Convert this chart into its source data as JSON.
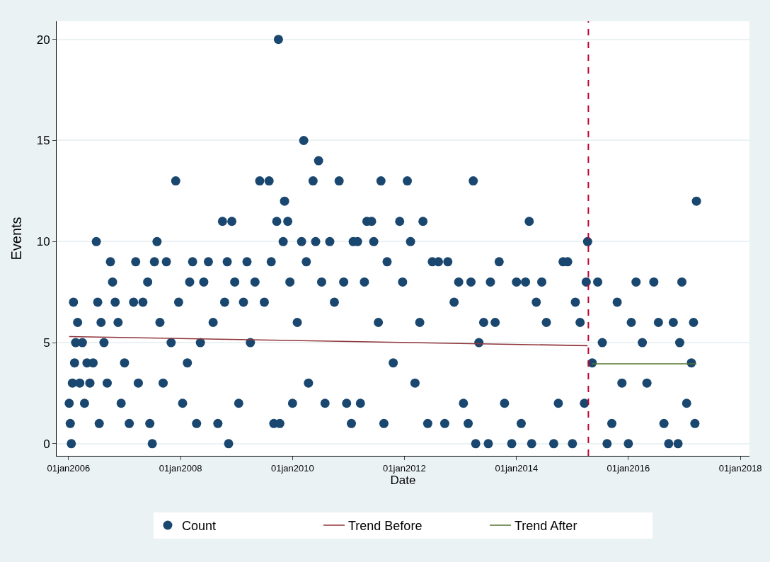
{
  "chart_data": {
    "type": "scatter",
    "xlabel": "Date",
    "ylabel": "Events",
    "xlim": [
      "2005-10-15",
      "2018-03-01"
    ],
    "ylim": [
      -0.6,
      20.9
    ],
    "xticks": [
      {
        "value": "2006-01-01",
        "label": "01jan2006"
      },
      {
        "value": "2008-01-01",
        "label": "01jan2008"
      },
      {
        "value": "2010-01-01",
        "label": "01jan2010"
      },
      {
        "value": "2012-01-01",
        "label": "01jan2012"
      },
      {
        "value": "2014-01-01",
        "label": "01jan2014"
      },
      {
        "value": "2016-01-01",
        "label": "01jan2016"
      },
      {
        "value": "2018-01-01",
        "label": "01jan2018"
      }
    ],
    "yticks": [
      0,
      5,
      10,
      15,
      20
    ],
    "grid": "y",
    "legend": "bottom",
    "ref_lines": [
      {
        "axis": "x",
        "value": "2015-04-15",
        "color": "#c10534",
        "line_style": "dashed"
      }
    ],
    "series": [
      {
        "name": "Count",
        "marker": "circle",
        "color": "#1a476f",
        "x": [
          "2006-01-05",
          "2006-01-12",
          "2006-01-19",
          "2006-01-26",
          "2006-02-02",
          "2006-02-09",
          "2006-02-16",
          "2006-03-01",
          "2006-03-15",
          "2006-04-01",
          "2006-04-15",
          "2006-05-01",
          "2006-05-20",
          "2006-06-10",
          "2006-07-01",
          "2006-07-10",
          "2006-07-20",
          "2006-08-01",
          "2006-08-20",
          "2006-09-10",
          "2006-10-01",
          "2006-10-15",
          "2006-11-01",
          "2006-11-20",
          "2006-12-10",
          "2007-01-01",
          "2007-02-01",
          "2007-03-01",
          "2007-03-15",
          "2007-04-01",
          "2007-05-01",
          "2007-06-01",
          "2007-06-15",
          "2007-07-01",
          "2007-07-15",
          "2007-08-01",
          "2007-08-20",
          "2007-09-10",
          "2007-10-01",
          "2007-11-01",
          "2007-12-01",
          "2007-12-20",
          "2008-01-15",
          "2008-02-15",
          "2008-03-01",
          "2008-03-20",
          "2008-04-15",
          "2008-05-10",
          "2008-06-01",
          "2008-07-01",
          "2008-08-01",
          "2008-09-01",
          "2008-10-01",
          "2008-10-15",
          "2008-11-01",
          "2008-11-10",
          "2008-12-01",
          "2008-12-20",
          "2009-01-15",
          "2009-02-15",
          "2009-03-10",
          "2009-04-01",
          "2009-05-01",
          "2009-06-01",
          "2009-07-01",
          "2009-08-01",
          "2009-08-15",
          "2009-09-01",
          "2009-09-20",
          "2009-10-01",
          "2009-10-10",
          "2009-11-01",
          "2009-11-10",
          "2009-12-01",
          "2009-12-15",
          "2010-01-01",
          "2010-02-01",
          "2010-03-01",
          "2010-03-15",
          "2010-04-01",
          "2010-04-15",
          "2010-05-15",
          "2010-06-01",
          "2010-06-20",
          "2010-07-10",
          "2010-08-01",
          "2010-09-01",
          "2010-10-01",
          "2010-11-01",
          "2010-12-01",
          "2010-12-20",
          "2011-01-20",
          "2011-02-01",
          "2011-03-01",
          "2011-03-20",
          "2011-04-15",
          "2011-05-01",
          "2011-06-01",
          "2011-06-15",
          "2011-07-15",
          "2011-08-01",
          "2011-08-20",
          "2011-09-10",
          "2011-10-20",
          "2011-12-01",
          "2011-12-20",
          "2012-01-20",
          "2012-02-10",
          "2012-03-10",
          "2012-04-10",
          "2012-05-01",
          "2012-06-01",
          "2012-07-01",
          "2012-08-10",
          "2012-09-20",
          "2012-10-10",
          "2012-11-20",
          "2012-12-20",
          "2013-01-20",
          "2013-02-20",
          "2013-03-10",
          "2013-03-25",
          "2013-04-10",
          "2013-05-01",
          "2013-06-01",
          "2013-07-01",
          "2013-07-15",
          "2013-08-15",
          "2013-09-10",
          "2013-10-15",
          "2013-12-01",
          "2014-01-01",
          "2014-02-01",
          "2014-03-01",
          "2014-03-25",
          "2014-04-10",
          "2014-05-10",
          "2014-06-15",
          "2014-07-15",
          "2014-09-01",
          "2014-10-01",
          "2014-11-01",
          "2014-12-01",
          "2015-01-01",
          "2015-01-20",
          "2015-02-20",
          "2015-03-20",
          "2015-04-01",
          "2015-04-10",
          "2015-05-10",
          "2015-06-15",
          "2015-07-15",
          "2015-08-15",
          "2015-09-15",
          "2015-10-20",
          "2015-11-20",
          "2016-01-01",
          "2016-01-20",
          "2016-02-20",
          "2016-04-01",
          "2016-05-01",
          "2016-06-15",
          "2016-07-15",
          "2016-08-20",
          "2016-09-20",
          "2016-10-20",
          "2016-11-20",
          "2016-12-01",
          "2016-12-15",
          "2017-01-15",
          "2017-02-15",
          "2017-03-01",
          "2017-03-10",
          "2017-03-20"
        ],
        "values": [
          2,
          1,
          0,
          3,
          7,
          4,
          5,
          6,
          3,
          5,
          2,
          4,
          3,
          4,
          10,
          7,
          1,
          6,
          5,
          3,
          9,
          8,
          7,
          6,
          2,
          4,
          1,
          7,
          9,
          3,
          7,
          8,
          1,
          0,
          9,
          10,
          6,
          3,
          9,
          5,
          13,
          7,
          2,
          4,
          8,
          9,
          1,
          5,
          8,
          9,
          6,
          1,
          11,
          7,
          9,
          0,
          11,
          8,
          2,
          7,
          9,
          5,
          8,
          13,
          7,
          13,
          9,
          1,
          11,
          20,
          1,
          10,
          12,
          11,
          8,
          2,
          6,
          10,
          15,
          9,
          3,
          13,
          10,
          14,
          8,
          2,
          10,
          7,
          13,
          8,
          2,
          1,
          10,
          10,
          2,
          8,
          11,
          11,
          10,
          6,
          13,
          1,
          9,
          4,
          11,
          8,
          13,
          10,
          3,
          6,
          11,
          1,
          9,
          9,
          1,
          9,
          7,
          8,
          2,
          1,
          8,
          13,
          0,
          5,
          6,
          0,
          8,
          6,
          9,
          2,
          0,
          8,
          1,
          8,
          11,
          0,
          7,
          8,
          6,
          0,
          2,
          9,
          9,
          0,
          7,
          6,
          2,
          8,
          10,
          4,
          8,
          5,
          0,
          1,
          7,
          3,
          0,
          6,
          8,
          5,
          3,
          8,
          6,
          1,
          0,
          6,
          0,
          5,
          8,
          2,
          4,
          6,
          1,
          12
        ]
      },
      {
        "name": "Trend Before",
        "type": "line",
        "marker": "none",
        "color": "#90353b",
        "x": [
          "2006-01-05",
          "2015-04-10"
        ],
        "values": [
          5.3,
          4.85
        ]
      },
      {
        "name": "Trend After",
        "type": "line",
        "marker": "none",
        "color": "#55752f",
        "x": [
          "2015-05-10",
          "2017-03-20"
        ],
        "values": [
          3.95,
          3.95
        ]
      }
    ]
  }
}
